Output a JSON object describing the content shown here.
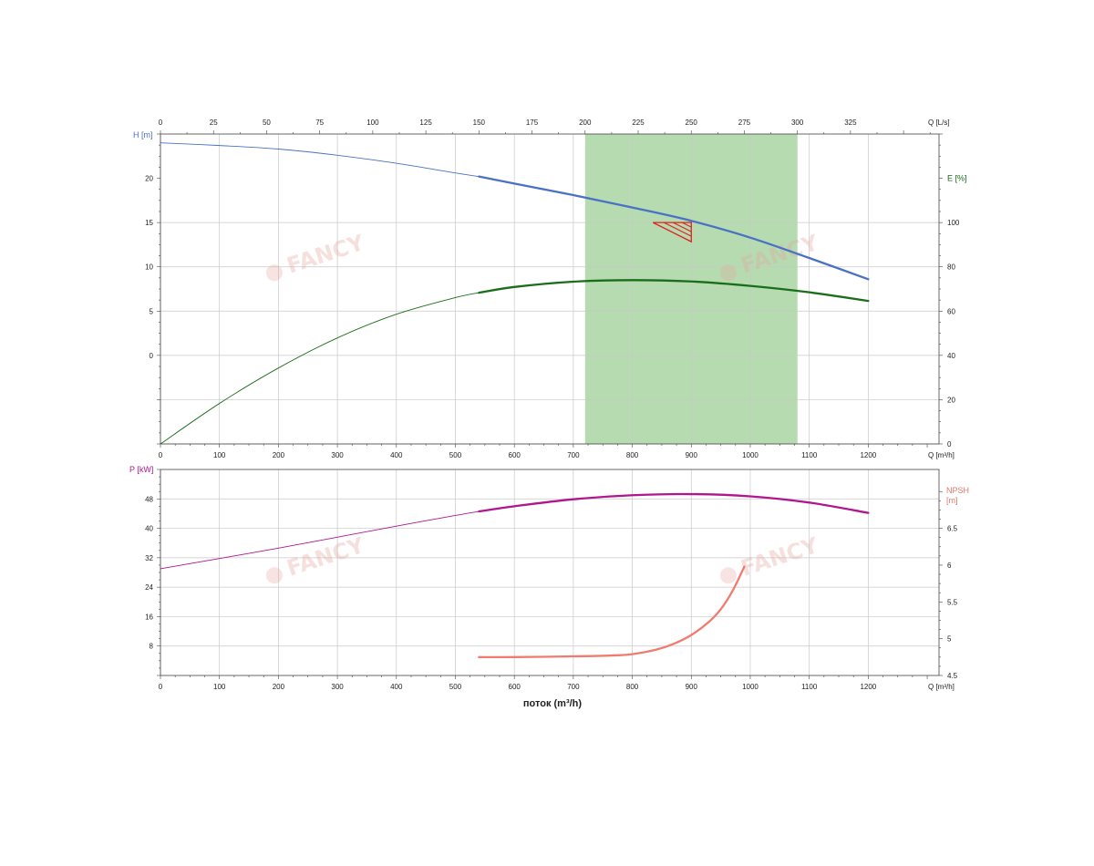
{
  "colors": {
    "head": "#4a72c4",
    "efficiency": "#1a6e1a",
    "power": "#b0178f",
    "npsh": "#f07c70",
    "operating_band": "#b6dbb0",
    "npsh_axis": "#e8766a",
    "watermark": "#e3a7a0"
  },
  "watermarks": [
    "FANCY",
    "FANCY",
    "FANCY",
    "FANCY"
  ],
  "chart_data": [
    {
      "type": "line",
      "xlabel": "Q [m³/h]",
      "x2label": "Q [L/s]",
      "ylabel": "H [m]",
      "y2label": "E [%]",
      "xlim": [
        0,
        1320
      ],
      "x2lim": [
        0,
        366.7
      ],
      "ylim": [
        -10,
        25
      ],
      "y2lim": [
        0,
        140
      ],
      "x_ticks": [
        0,
        100,
        200,
        300,
        400,
        500,
        600,
        700,
        800,
        900,
        1000,
        1100,
        1200
      ],
      "x2_ticks": [
        0,
        25,
        50,
        75,
        100,
        125,
        150,
        175,
        200,
        225,
        250,
        275,
        300,
        325
      ],
      "y_ticks": [
        0,
        5,
        10,
        15,
        20
      ],
      "y2_ticks": [
        0,
        20,
        40,
        60,
        80,
        100
      ],
      "grid": true,
      "operating_range": [
        720,
        1080
      ],
      "duty_point": {
        "x": 900,
        "y": 15
      },
      "series": [
        {
          "key": "head",
          "axis": "left",
          "color_key": "head",
          "x": [
            0,
            100,
            200,
            300,
            400,
            500,
            540,
            600,
            700,
            800,
            900,
            1000,
            1100,
            1200
          ],
          "y": [
            24.0,
            23.7,
            23.3,
            22.6,
            21.7,
            20.6,
            20.2,
            19.4,
            18.1,
            16.7,
            15.2,
            13.3,
            11.0,
            8.6
          ],
          "bold_from": 540
        },
        {
          "key": "efficiency",
          "axis": "right",
          "color_key": "efficiency",
          "x": [
            0,
            100,
            200,
            300,
            400,
            500,
            540,
            600,
            700,
            800,
            900,
            1000,
            1100,
            1200
          ],
          "y": [
            0,
            18.3,
            34.3,
            47.9,
            58.6,
            66.1,
            68.3,
            70.9,
            73.3,
            74.0,
            73.4,
            71.4,
            68.5,
            64.6
          ],
          "bold_from": 540
        }
      ]
    },
    {
      "type": "line",
      "xlabel": "Q [m³/h]",
      "ylabel": "P [kW]",
      "y2label": "NPSH\n[m]",
      "xlim": [
        0,
        1320
      ],
      "ylim": [
        0,
        56
      ],
      "y2lim": [
        4.5,
        7.3
      ],
      "x_ticks": [
        0,
        100,
        200,
        300,
        400,
        500,
        600,
        700,
        800,
        900,
        1000,
        1100,
        1200
      ],
      "y_ticks": [
        8,
        16,
        24,
        32,
        40,
        48
      ],
      "y2_ticks": [
        4.5,
        5,
        5.5,
        6,
        6.5
      ],
      "y2_tick_labels": [
        "4.5",
        "5",
        "5.5",
        "6",
        "6.5"
      ],
      "grid": true,
      "main_xlabel": "поток (m³/h)",
      "series": [
        {
          "key": "power",
          "axis": "left",
          "color_key": "power",
          "x": [
            0,
            100,
            200,
            300,
            400,
            500,
            540,
            600,
            700,
            800,
            900,
            1000,
            1100,
            1200
          ],
          "y": [
            29.0,
            31.8,
            34.6,
            37.6,
            40.6,
            43.5,
            44.6,
            46.0,
            47.9,
            49.0,
            49.3,
            48.7,
            47.0,
            44.2
          ],
          "bold_from": 540
        },
        {
          "key": "npsh",
          "axis": "right",
          "color_key": "npsh",
          "x": [
            540,
            600,
            700,
            760,
            800,
            840,
            870,
            900,
            930,
            950,
            970,
            990
          ],
          "y": [
            4.75,
            4.75,
            4.76,
            4.77,
            4.79,
            4.85,
            4.93,
            5.05,
            5.23,
            5.4,
            5.65,
            5.98
          ],
          "bold_from": 540
        }
      ]
    }
  ]
}
